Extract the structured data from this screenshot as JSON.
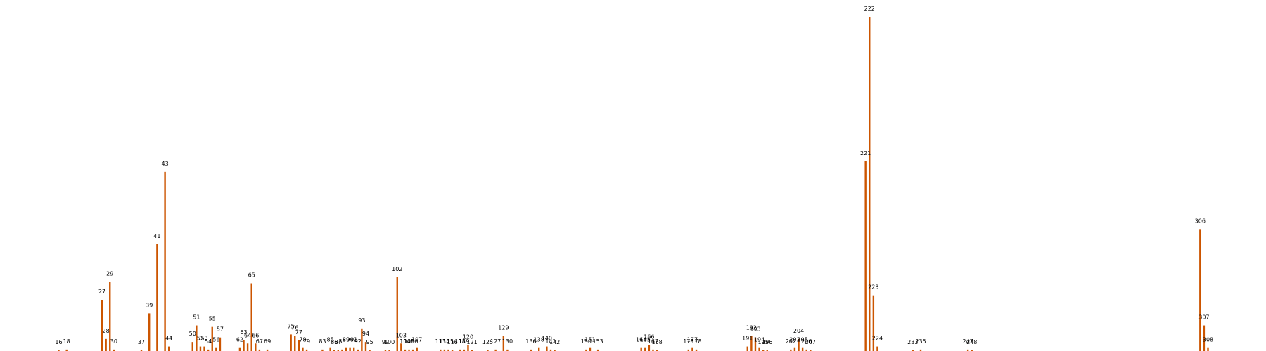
{
  "chart_data": {
    "type": "bar",
    "title": "",
    "xlabel": "",
    "ylabel": "",
    "grid": false,
    "axes_visible": false,
    "bar_color": "#cc5500",
    "x_range": [
      14,
      310
    ],
    "ylim": [
      0,
      222
    ],
    "data_labels": "x value above each bar",
    "points": [
      {
        "x": 16,
        "y": 0.5
      },
      {
        "x": 18,
        "y": 1
      },
      {
        "x": 27,
        "y": 34
      },
      {
        "x": 28,
        "y": 8
      },
      {
        "x": 29,
        "y": 46
      },
      {
        "x": 30,
        "y": 1
      },
      {
        "x": 37,
        "y": 0.5
      },
      {
        "x": 39,
        "y": 25
      },
      {
        "x": 41,
        "y": 71
      },
      {
        "x": 43,
        "y": 119
      },
      {
        "x": 44,
        "y": 3
      },
      {
        "x": 50,
        "y": 6
      },
      {
        "x": 51,
        "y": 17
      },
      {
        "x": 52,
        "y": 3
      },
      {
        "x": 53,
        "y": 3
      },
      {
        "x": 54,
        "y": 1
      },
      {
        "x": 55,
        "y": 16
      },
      {
        "x": 56,
        "y": 2
      },
      {
        "x": 57,
        "y": 9
      },
      {
        "x": 62,
        "y": 2
      },
      {
        "x": 63,
        "y": 7
      },
      {
        "x": 64,
        "y": 5
      },
      {
        "x": 65,
        "y": 45
      },
      {
        "x": 66,
        "y": 5
      },
      {
        "x": 67,
        "y": 1
      },
      {
        "x": 69,
        "y": 1
      },
      {
        "x": 75,
        "y": 11
      },
      {
        "x": 76,
        "y": 10
      },
      {
        "x": 77,
        "y": 7
      },
      {
        "x": 78,
        "y": 2
      },
      {
        "x": 79,
        "y": 1
      },
      {
        "x": 83,
        "y": 1
      },
      {
        "x": 85,
        "y": 2
      },
      {
        "x": 86,
        "y": 0.5
      },
      {
        "x": 87,
        "y": 0.5
      },
      {
        "x": 88,
        "y": 1
      },
      {
        "x": 89,
        "y": 2
      },
      {
        "x": 90,
        "y": 2
      },
      {
        "x": 91,
        "y": 2
      },
      {
        "x": 92,
        "y": 1
      },
      {
        "x": 93,
        "y": 15
      },
      {
        "x": 94,
        "y": 6
      },
      {
        "x": 95,
        "y": 0.5
      },
      {
        "x": 99,
        "y": 0.5
      },
      {
        "x": 100,
        "y": 0.5
      },
      {
        "x": 102,
        "y": 49
      },
      {
        "x": 103,
        "y": 5
      },
      {
        "x": 104,
        "y": 1
      },
      {
        "x": 105,
        "y": 1
      },
      {
        "x": 106,
        "y": 1
      },
      {
        "x": 107,
        "y": 2
      },
      {
        "x": 113,
        "y": 1
      },
      {
        "x": 114,
        "y": 1
      },
      {
        "x": 115,
        "y": 1
      },
      {
        "x": 116,
        "y": 0.5
      },
      {
        "x": 118,
        "y": 1
      },
      {
        "x": 119,
        "y": 1
      },
      {
        "x": 120,
        "y": 4
      },
      {
        "x": 121,
        "y": 0.5
      },
      {
        "x": 125,
        "y": 0.5
      },
      {
        "x": 127,
        "y": 1
      },
      {
        "x": 129,
        "y": 10
      },
      {
        "x": 130,
        "y": 1
      },
      {
        "x": 136,
        "y": 1
      },
      {
        "x": 138,
        "y": 2
      },
      {
        "x": 140,
        "y": 3
      },
      {
        "x": 141,
        "y": 1
      },
      {
        "x": 142,
        "y": 0.5
      },
      {
        "x": 150,
        "y": 1
      },
      {
        "x": 151,
        "y": 2
      },
      {
        "x": 153,
        "y": 1
      },
      {
        "x": 164,
        "y": 2
      },
      {
        "x": 165,
        "y": 2
      },
      {
        "x": 166,
        "y": 4
      },
      {
        "x": 167,
        "y": 1
      },
      {
        "x": 168,
        "y": 0.5
      },
      {
        "x": 176,
        "y": 1
      },
      {
        "x": 177,
        "y": 2
      },
      {
        "x": 178,
        "y": 1
      },
      {
        "x": 191,
        "y": 3
      },
      {
        "x": 192,
        "y": 10
      },
      {
        "x": 193,
        "y": 9
      },
      {
        "x": 194,
        "y": 2
      },
      {
        "x": 195,
        "y": 0.5
      },
      {
        "x": 196,
        "y": 0.5
      },
      {
        "x": 202,
        "y": 1
      },
      {
        "x": 203,
        "y": 2
      },
      {
        "x": 204,
        "y": 8
      },
      {
        "x": 205,
        "y": 2
      },
      {
        "x": 206,
        "y": 1
      },
      {
        "x": 207,
        "y": 0.5
      },
      {
        "x": 221,
        "y": 126
      },
      {
        "x": 222,
        "y": 222
      },
      {
        "x": 223,
        "y": 37
      },
      {
        "x": 224,
        "y": 3
      },
      {
        "x": 233,
        "y": 0.5
      },
      {
        "x": 235,
        "y": 1
      },
      {
        "x": 247,
        "y": 1
      },
      {
        "x": 248,
        "y": 0.5
      },
      {
        "x": 306,
        "y": 81
      },
      {
        "x": 307,
        "y": 17
      },
      {
        "x": 308,
        "y": 2
      }
    ]
  }
}
